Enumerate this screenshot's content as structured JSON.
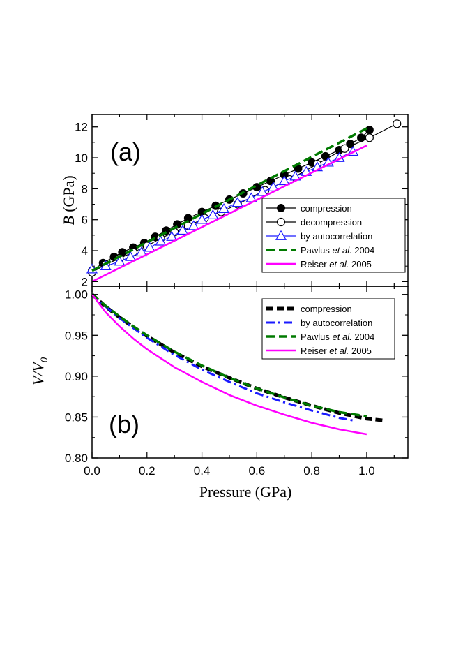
{
  "chart_data": [
    {
      "panel": "a",
      "panel_label": "(a)",
      "type": "line",
      "ylabel_var": "B",
      "ylabel_unit": "(GPa)",
      "xlim": [
        0.0,
        1.15
      ],
      "ylim": [
        1.7,
        12.8
      ],
      "yticks": [
        2,
        4,
        6,
        8,
        10,
        12
      ],
      "legend_position": "center-right",
      "series": [
        {
          "name": "compression",
          "style": "filled-circle-line",
          "color": "#000000",
          "x": [
            0.0,
            0.04,
            0.08,
            0.11,
            0.15,
            0.19,
            0.23,
            0.27,
            0.31,
            0.35,
            0.4,
            0.45,
            0.5,
            0.55,
            0.6,
            0.65,
            0.7,
            0.75,
            0.8,
            0.85,
            0.9,
            0.94,
            0.98,
            1.01
          ],
          "y": [
            2.7,
            3.2,
            3.6,
            3.9,
            4.2,
            4.5,
            4.9,
            5.3,
            5.7,
            6.1,
            6.5,
            6.9,
            7.3,
            7.7,
            8.1,
            8.5,
            8.9,
            9.3,
            9.7,
            10.1,
            10.5,
            10.9,
            11.3,
            11.8
          ]
        },
        {
          "name": "decompression",
          "style": "open-circle-line",
          "color": "#000000",
          "x": [
            0.0,
            0.05,
            0.1,
            0.15,
            0.2,
            0.25,
            0.3,
            0.35,
            0.41,
            0.47,
            0.53,
            0.63,
            0.72,
            0.82,
            0.92,
            1.01,
            1.11
          ],
          "y": [
            2.6,
            3.1,
            3.5,
            3.9,
            4.3,
            4.8,
            5.2,
            5.6,
            6.1,
            6.5,
            7.0,
            7.9,
            8.6,
            9.6,
            10.6,
            11.3,
            12.2
          ]
        },
        {
          "name": "by autocorrelation",
          "style": "open-triangle-line",
          "color": "#1a1aff",
          "x": [
            0.0,
            0.05,
            0.1,
            0.14,
            0.18,
            0.21,
            0.25,
            0.29,
            0.33,
            0.37,
            0.4,
            0.44,
            0.48,
            0.53,
            0.58,
            0.62,
            0.66,
            0.7,
            0.74,
            0.78,
            0.82,
            0.86,
            0.9,
            0.95
          ],
          "y": [
            2.8,
            3.0,
            3.3,
            3.6,
            3.9,
            4.2,
            4.6,
            4.9,
            5.3,
            5.6,
            6.0,
            6.3,
            6.7,
            7.1,
            7.4,
            7.8,
            8.1,
            8.5,
            8.8,
            9.1,
            9.4,
            9.7,
            10.0,
            10.4
          ]
        },
        {
          "name": "Pawlus et al. 2004",
          "name_plain": "Pawlus ",
          "name_italic": "et al.",
          "name_year": " 2004",
          "style": "dashed",
          "color": "#007a00",
          "x": [
            0.0,
            1.0
          ],
          "y": [
            2.7,
            11.9
          ]
        },
        {
          "name": "Reiser et al. 2005",
          "name_plain": "Reiser ",
          "name_italic": "et al.",
          "name_year": " 2005",
          "style": "solid",
          "color": "#ff00ff",
          "x": [
            0.0,
            1.0
          ],
          "y": [
            2.0,
            10.8
          ]
        }
      ]
    },
    {
      "panel": "b",
      "panel_label": "(b)",
      "type": "line",
      "xlabel": "Pressure (GPa)",
      "ylabel_var": "V/V",
      "ylabel_sub": "0",
      "xlim": [
        0.0,
        1.15
      ],
      "ylim": [
        0.8,
        1.01
      ],
      "xticks": [
        0.0,
        0.2,
        0.4,
        0.6,
        0.8,
        1.0
      ],
      "xtick_labels": [
        "0.0",
        "0.2",
        "0.4",
        "0.6",
        "0.8",
        "1.0"
      ],
      "yticks": [
        0.8,
        0.85,
        0.9,
        0.95,
        1.0
      ],
      "ytick_labels": [
        "0.80",
        "0.85",
        "0.90",
        "0.95",
        "1.00"
      ],
      "legend_position": "top-right",
      "series": [
        {
          "name": "compression",
          "style": "thick-dashed",
          "color": "#000000",
          "x": [
            0.0,
            0.05,
            0.1,
            0.15,
            0.2,
            0.3,
            0.4,
            0.5,
            0.6,
            0.7,
            0.8,
            0.9,
            1.0,
            1.06
          ],
          "y": [
            1.0,
            0.985,
            0.972,
            0.96,
            0.949,
            0.929,
            0.912,
            0.898,
            0.885,
            0.874,
            0.864,
            0.855,
            0.848,
            0.846
          ]
        },
        {
          "name": "by autocorrelation",
          "style": "dash-dot",
          "color": "#1a1aff",
          "x": [
            0.0,
            0.05,
            0.1,
            0.15,
            0.2,
            0.3,
            0.4,
            0.5,
            0.6,
            0.7,
            0.8,
            0.9,
            0.95
          ],
          "y": [
            1.0,
            0.985,
            0.971,
            0.959,
            0.947,
            0.926,
            0.908,
            0.893,
            0.879,
            0.868,
            0.858,
            0.849,
            0.846
          ]
        },
        {
          "name": "Pawlus et al. 2004",
          "name_plain": "Pawlus ",
          "name_italic": "et al.",
          "name_year": " 2004",
          "style": "dashed",
          "color": "#007a00",
          "x": [
            0.0,
            0.05,
            0.1,
            0.15,
            0.2,
            0.3,
            0.4,
            0.5,
            0.6,
            0.7,
            0.8,
            0.9,
            1.0
          ],
          "y": [
            1.0,
            0.986,
            0.973,
            0.961,
            0.95,
            0.93,
            0.913,
            0.898,
            0.885,
            0.874,
            0.864,
            0.856,
            0.851
          ]
        },
        {
          "name": "Reiser et al. 2005",
          "name_plain": "Reiser ",
          "name_italic": "et al.",
          "name_year": " 2005",
          "style": "solid",
          "color": "#ff00ff",
          "x": [
            0.0,
            0.05,
            0.1,
            0.15,
            0.2,
            0.3,
            0.4,
            0.5,
            0.6,
            0.7,
            0.8,
            0.9,
            1.0
          ],
          "y": [
            1.0,
            0.978,
            0.961,
            0.946,
            0.933,
            0.911,
            0.893,
            0.877,
            0.864,
            0.853,
            0.843,
            0.835,
            0.829
          ]
        }
      ]
    }
  ]
}
